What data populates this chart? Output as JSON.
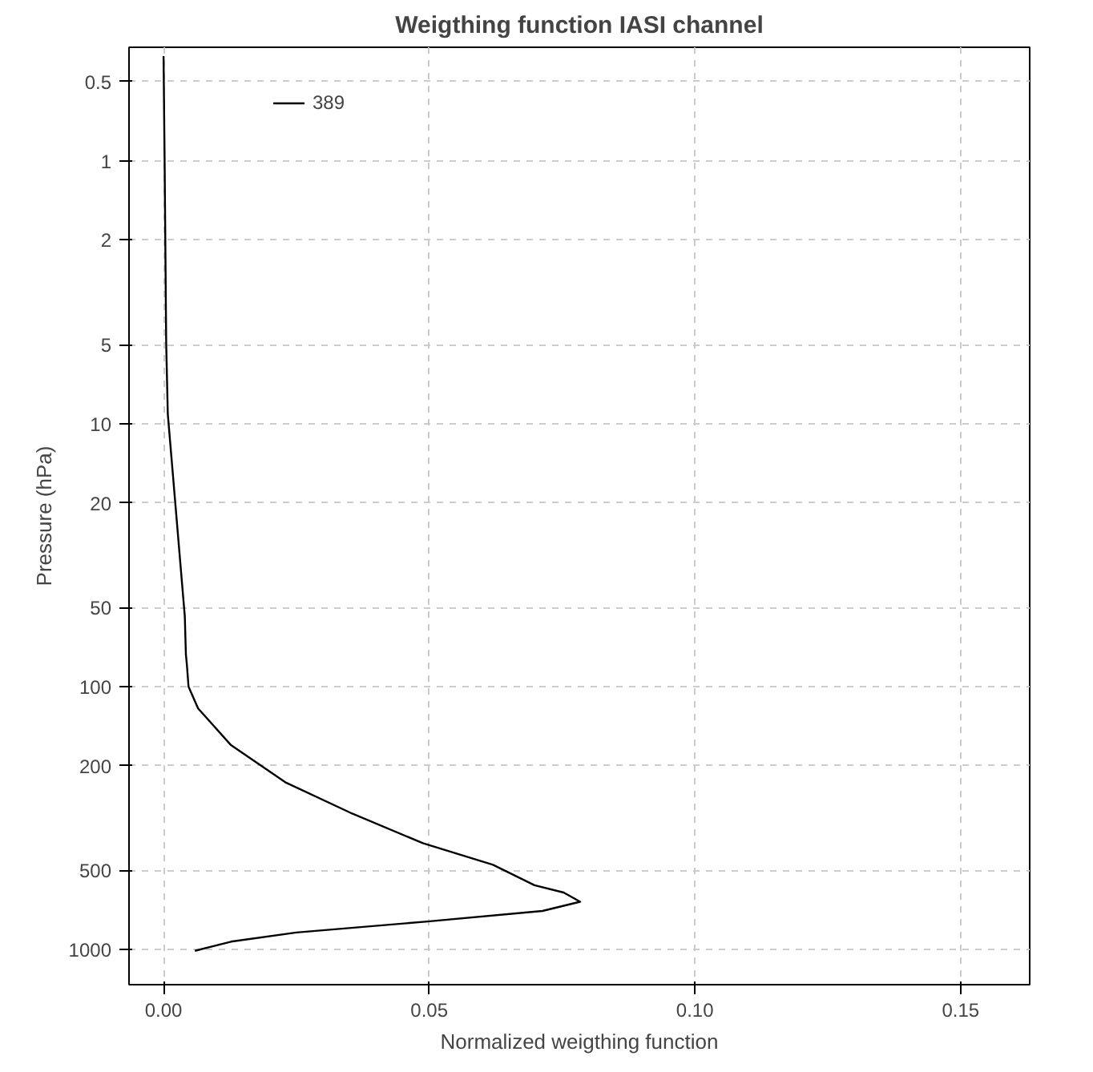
{
  "chart_data": {
    "type": "line",
    "title": "Weigthing function IASI channel",
    "xlabel": "Normalized weigthing function",
    "ylabel": "Pressure (hPa)",
    "log": "y",
    "xlim": [
      -0.0065,
      0.163
    ],
    "ylim": [
      1360,
      0.37
    ],
    "xticks": [
      {
        "value": 0,
        "label": "0.00"
      },
      {
        "value": 0.05,
        "label": "0.05"
      },
      {
        "value": 0.1,
        "label": "0.10"
      },
      {
        "value": 0.15,
        "label": "0.15"
      }
    ],
    "yticks": [
      0.5,
      1,
      2,
      5,
      10,
      20,
      50,
      100,
      200,
      500,
      1000
    ],
    "grid": true,
    "legend": "top left",
    "line_style": "solid",
    "marker": "none",
    "series": [
      {
        "name": "389",
        "color": "#000000",
        "x": [
          0.0,
          0.0002,
          0.0005,
          0.0008,
          0.004,
          0.0042,
          0.0044,
          0.0047,
          0.0065,
          0.0127,
          0.0229,
          0.0352,
          0.0488,
          0.062,
          0.0698,
          0.0753,
          0.0784,
          0.0713,
          0.0497,
          0.025,
          0.0127,
          0.0059
        ],
        "values": [
          0.4,
          1,
          5,
          9.2,
          54,
          75,
          83,
          100,
          121,
          167,
          231,
          302,
          394,
          476,
          569,
          607,
          658,
          713,
          782,
          861,
          933,
          1011
        ]
      }
    ]
  }
}
